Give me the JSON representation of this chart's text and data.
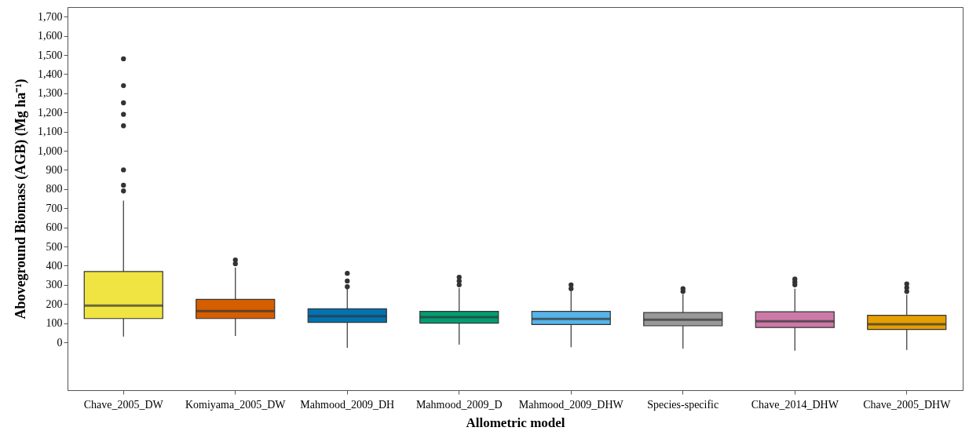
{
  "chart_data": {
    "type": "box",
    "xlabel": "Allometric model",
    "ylabel": "Aboveground Biomass (AGB) (Mg ha⁻¹)",
    "categories": [
      "Chave_2005_DW",
      "Komiyama_2005_DW",
      "Mahmood_2009_DH",
      "Mahmood_2009_D",
      "Mahmood_2009_DHW",
      "Species-specific",
      "Chave_2014_DHW",
      "Chave_2005_DHW"
    ],
    "colors": [
      "#f0e442",
      "#d55e00",
      "#0072b2",
      "#009e73",
      "#56b4e9",
      "#999999",
      "#cc79a7",
      "#e69f00"
    ],
    "boxes": [
      {
        "low": 30,
        "q1": 124,
        "median": 192,
        "q3": 369,
        "high": 740,
        "outliers": [
          790,
          820,
          900,
          1130,
          1190,
          1250,
          1340,
          1480
        ]
      },
      {
        "low": 33,
        "q1": 124,
        "median": 163,
        "q3": 224,
        "high": 390,
        "outliers": [
          410,
          430
        ]
      },
      {
        "low": -29,
        "q1": 104,
        "median": 136,
        "q3": 175,
        "high": 280,
        "outliers": [
          290,
          320,
          360
        ]
      },
      {
        "low": -12,
        "q1": 100,
        "median": 131,
        "q3": 161,
        "high": 283,
        "outliers": [
          300,
          320,
          340
        ]
      },
      {
        "low": -26,
        "q1": 93,
        "median": 122,
        "q3": 161,
        "high": 275,
        "outliers": [
          280,
          300
        ]
      },
      {
        "low": -33,
        "q1": 86,
        "median": 118,
        "q3": 155,
        "high": 250,
        "outliers": [
          265,
          280
        ]
      },
      {
        "low": -44,
        "q1": 77,
        "median": 110,
        "q3": 159,
        "high": 280,
        "outliers": [
          300,
          315,
          330
        ]
      },
      {
        "low": -40,
        "q1": 67,
        "median": 94,
        "q3": 141,
        "high": 248,
        "outliers": [
          265,
          285,
          305
        ]
      }
    ],
    "ylim": [
      -250,
      1750
    ],
    "yticks": [
      0,
      100,
      200,
      300,
      400,
      500,
      600,
      700,
      800,
      900,
      {
        "value": 1000,
        "label": "1,000"
      },
      {
        "value": 1100,
        "label": "1,100"
      },
      {
        "value": 1200,
        "label": "1,200"
      },
      {
        "value": 1300,
        "label": "1,300"
      },
      {
        "value": 1400,
        "label": "1,400"
      },
      {
        "value": 1500,
        "label": "1,500"
      },
      {
        "value": 1600,
        "label": "1,600"
      },
      {
        "value": 1700,
        "label": "1,700"
      }
    ],
    "grid": false
  }
}
